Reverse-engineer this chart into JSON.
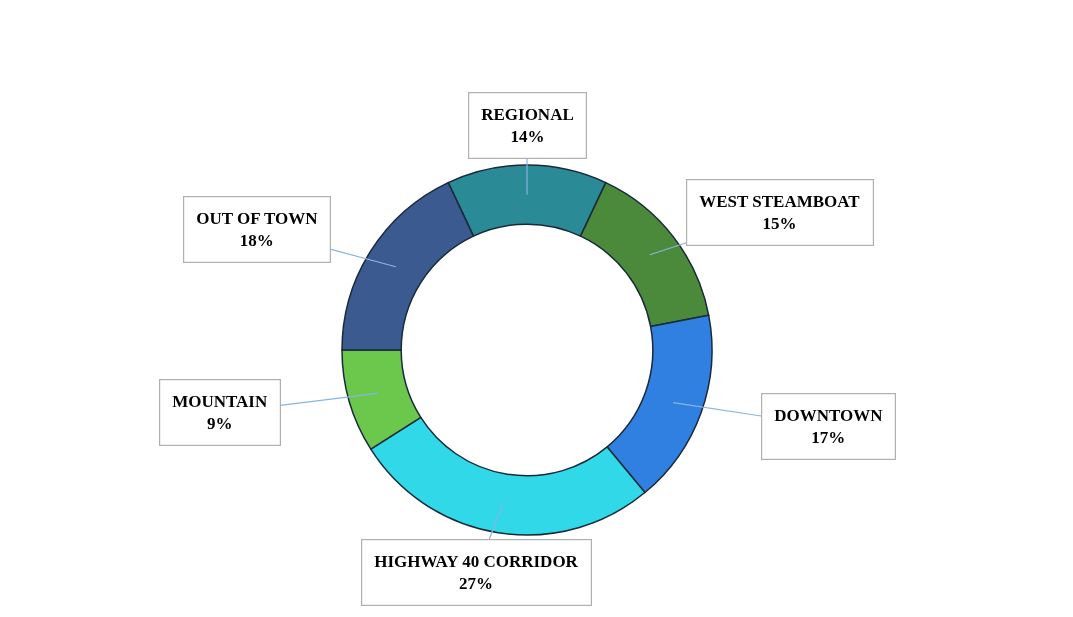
{
  "chart_data": {
    "type": "donut",
    "categories": [
      "REGIONAL",
      "WEST STEAMBOAT",
      "DOWNTOWN",
      "HIGHWAY 40 CORRIDOR",
      "MOUNTAIN",
      "OUT OF TOWN"
    ],
    "values": [
      14,
      15,
      17,
      27,
      9,
      18
    ],
    "value_labels": [
      "14%",
      "15%",
      "17%",
      "27%",
      "9%",
      "18%"
    ],
    "colors": [
      "#2a8a96",
      "#4a8a3a",
      "#2f80e0",
      "#30d8e8",
      "#6cc84c",
      "#3a5a90"
    ],
    "legend": false
  }
}
